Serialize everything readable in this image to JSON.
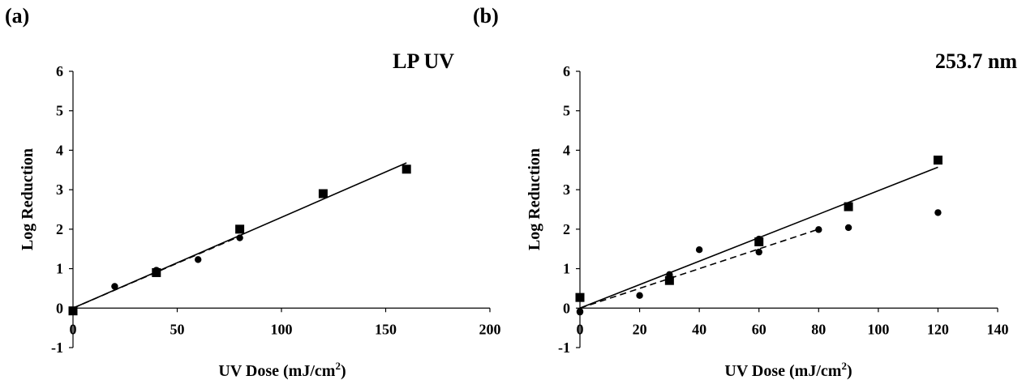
{
  "figure": {
    "background": "#ffffff",
    "ink": "#000000"
  },
  "chart_data": [
    {
      "type": "scatter",
      "panel_label": "(a)",
      "title": "LP UV",
      "xlabel_main": "UV Dose (mJ/cm",
      "xlabel_sup": "2",
      "xlabel_tail": ")",
      "ylabel": "Log Reduction",
      "xlim": [
        0,
        200
      ],
      "ylim": [
        -1,
        6
      ],
      "xticks": [
        0,
        50,
        100,
        150,
        200
      ],
      "yticks": [
        -1,
        0,
        1,
        2,
        3,
        4,
        5,
        6
      ],
      "grid": false,
      "series": [
        {
          "marker": "square",
          "fit": "solid",
          "x": [
            0,
            40,
            80,
            120,
            160
          ],
          "y": [
            -0.07,
            0.9,
            2.0,
            2.9,
            3.52
          ],
          "fit_line": {
            "x": [
              0,
              160
            ],
            "y": [
              0.0,
              3.68
            ]
          }
        },
        {
          "marker": "circle",
          "fit": "dashed",
          "x": [
            0,
            20,
            40,
            60,
            80
          ],
          "y": [
            -0.05,
            0.55,
            0.96,
            1.23,
            1.78
          ],
          "fit_line": {
            "x": [
              0,
              80
            ],
            "y": [
              0.0,
              1.82
            ]
          }
        }
      ]
    },
    {
      "type": "scatter",
      "panel_label": "(b)",
      "title": "253.7 nm",
      "xlabel_main": "UV Dose (mJ/cm",
      "xlabel_sup": "2",
      "xlabel_tail": ")",
      "ylabel": "Log Reduction",
      "xlim": [
        0,
        140
      ],
      "ylim": [
        -1,
        6
      ],
      "xticks": [
        0,
        20,
        40,
        60,
        80,
        100,
        120,
        140
      ],
      "yticks": [
        -1,
        0,
        1,
        2,
        3,
        4,
        5,
        6
      ],
      "grid": false,
      "series": [
        {
          "marker": "square",
          "fit": "solid",
          "x": [
            0,
            30,
            60,
            90,
            120
          ],
          "y": [
            0.27,
            0.7,
            1.68,
            2.57,
            3.75
          ],
          "fit_line": {
            "x": [
              0,
              120
            ],
            "y": [
              0.0,
              3.57
            ]
          }
        },
        {
          "marker": "circle",
          "fit": "dashed",
          "x": [
            0,
            0,
            20,
            30,
            30,
            40,
            60,
            60,
            80,
            90,
            120
          ],
          "y": [
            -0.1,
            -0.08,
            0.32,
            0.78,
            0.85,
            1.48,
            1.42,
            1.75,
            1.99,
            2.04,
            2.42
          ],
          "fit_line": {
            "x": [
              0,
              80
            ],
            "y": [
              0.0,
              2.0
            ]
          }
        }
      ]
    }
  ]
}
